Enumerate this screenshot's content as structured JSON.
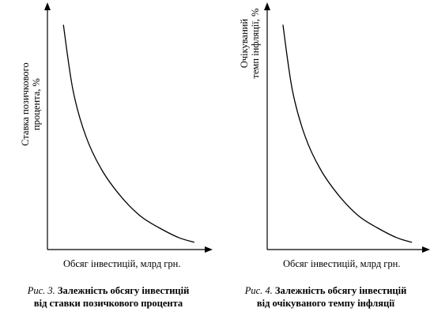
{
  "chart_data": [
    {
      "type": "line",
      "ylabel_lines": [
        "Ставка позичкового",
        "процента, %"
      ],
      "xlabel": "Обсяг інвестицій, млрд грн.",
      "ticks": false,
      "grid": false,
      "legend": "none",
      "scale": "relative (no numeric ticks); values as fraction of axis length",
      "series": [
        {
          "x": [
            0.1,
            0.16,
            0.24,
            0.34,
            0.46,
            0.58,
            0.7,
            0.82,
            0.92
          ],
          "y": [
            0.93,
            0.66,
            0.47,
            0.33,
            0.22,
            0.14,
            0.09,
            0.05,
            0.03
          ]
        }
      ]
    },
    {
      "type": "line",
      "ylabel_lines": [
        "Очікуваний",
        "темп інфляції, %"
      ],
      "xlabel": "Обсяг інвестицій, млрд грн.",
      "ticks": false,
      "grid": false,
      "legend": "none",
      "scale": "relative (no numeric ticks); values as fraction of axis length",
      "series": [
        {
          "x": [
            0.1,
            0.16,
            0.24,
            0.34,
            0.46,
            0.58,
            0.7,
            0.82,
            0.92
          ],
          "y": [
            0.93,
            0.66,
            0.47,
            0.33,
            0.22,
            0.14,
            0.09,
            0.05,
            0.03
          ]
        }
      ]
    }
  ],
  "captions": [
    {
      "number": "Рис. 3.",
      "line1": "Залежність обсягу інвестицій",
      "line2": "від ставки позичкового процента"
    },
    {
      "number": "Рис. 4.",
      "line1": "Залежність обсягу інвестицій",
      "line2": "від очікуваного темпу інфляції"
    }
  ]
}
